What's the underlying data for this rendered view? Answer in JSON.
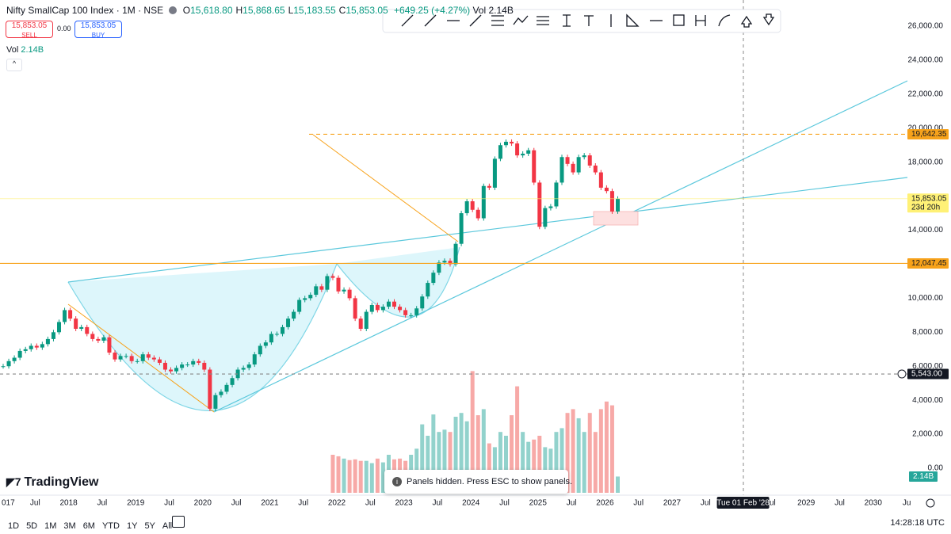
{
  "header": {
    "symbol": "Nifty SmallCap 100 Index · 1M · NSE",
    "ohlc": [
      {
        "key": "O",
        "value": "15,618.80"
      },
      {
        "key": "H",
        "value": "15,868.65"
      },
      {
        "key": "L",
        "value": "15,183.55"
      },
      {
        "key": "C",
        "value": "15,853.05"
      }
    ],
    "change": "+649.25 (+4.27%)",
    "vol": "Vol 2.14B"
  },
  "trade": {
    "sell_price": "15,853.05",
    "sell": "SELL",
    "spread": "0.00",
    "buy_price": "15,853.05",
    "buy": "BUY"
  },
  "volume_legend": {
    "label": "Vol",
    "value": "2.14B"
  },
  "chart_data": {
    "type": "candlestick",
    "up_color": "#089981",
    "down_color": "#f23645",
    "volume_up_color": "#92d2cc",
    "volume_down_color": "#f7a9a7",
    "closes": [
      6000,
      6300,
      6500,
      6900,
      7000,
      7200,
      7100,
      7300,
      7600,
      8000,
      8600,
      9300,
      8800,
      8200,
      8300,
      7900,
      7600,
      7500,
      7700,
      6800,
      6400,
      6600,
      6600,
      6300,
      6300,
      6700,
      6500,
      6400,
      6200,
      5800,
      5700,
      5900,
      6100,
      6100,
      6300,
      6200,
      5800,
      3500,
      4300,
      4500,
      4900,
      5300,
      5800,
      5900,
      6100,
      6700,
      7200,
      7400,
      7900,
      7900,
      8300,
      8800,
      9200,
      9900,
      10000,
      10200,
      10700,
      10500,
      11300,
      11200,
      10400,
      10500,
      10000,
      8800,
      8200,
      9200,
      9600,
      9300,
      9500,
      9800,
      9500,
      9300,
      9000,
      9000,
      9400,
      10100,
      10900,
      11500,
      12100,
      12200,
      12000,
      13200,
      15000,
      15700,
      15200,
      14700,
      16600,
      16500,
      18200,
      19000,
      19200,
      19100,
      18400,
      18500,
      18700,
      16800,
      14200,
      15300,
      15400,
      16800,
      18300,
      17900,
      17400,
      18300,
      18400,
      17800,
      17400,
      16500,
      16300,
      15100,
      15853.05
    ],
    "volumes": [
      null,
      null,
      null,
      null,
      null,
      null,
      null,
      null,
      null,
      null,
      null,
      null,
      null,
      null,
      null,
      null,
      null,
      null,
      null,
      null,
      null,
      null,
      null,
      null,
      null,
      null,
      null,
      null,
      null,
      null,
      null,
      null,
      null,
      null,
      null,
      null,
      null,
      null,
      null,
      null,
      null,
      null,
      null,
      null,
      null,
      null,
      null,
      null,
      null,
      null,
      null,
      null,
      null,
      null,
      null,
      null,
      null,
      null,
      null,
      5.0,
      4.8,
      4.5,
      4.3,
      4.4,
      4.2,
      4.2,
      3.9,
      4.5,
      4.0,
      5.0,
      4.4,
      4.5,
      4.2,
      5.0,
      5.8,
      9.0,
      7.5,
      10.3,
      8.0,
      8.3,
      8.0,
      10.0,
      10.5,
      9.4,
      16.0,
      10.2,
      11.0,
      6.5,
      6.0,
      8.0,
      7.5,
      10.2,
      14.0,
      8.0,
      6.7,
      7.0,
      7.5,
      6.0,
      5.8,
      8.0,
      8.5,
      10.5,
      11.0,
      9.8,
      8.0,
      10.5,
      8.0,
      11.0,
      12.0,
      11.5,
      2.14
    ],
    "ylim": [
      0,
      26000
    ],
    "yticks": [
      {
        "value": 26000,
        "label": "26,000.00"
      },
      {
        "value": 24000,
        "label": "24,000.00"
      },
      {
        "value": 22000,
        "label": "22,000.00"
      },
      {
        "value": 20000,
        "label": "20,000.00"
      },
      {
        "value": 18000,
        "label": "18,000.00"
      },
      {
        "value": 14000,
        "label": "14,000.00"
      },
      {
        "value": 10000,
        "label": "10,000.00"
      },
      {
        "value": 8000,
        "label": "8,000.00"
      },
      {
        "value": 6000,
        "label": "6,000.00"
      },
      {
        "value": 4000,
        "label": "4,000.00"
      },
      {
        "value": 2000,
        "label": "2,000.00"
      },
      {
        "value": 0,
        "label": "0.00"
      }
    ],
    "price_labels": [
      {
        "value": 19642.35,
        "label": "19,642.35",
        "color": "#f7a21b"
      },
      {
        "value": 15853.05,
        "label": "15,853.05",
        "sub": "23d 20h",
        "color": "#fff176"
      },
      {
        "value": 12047.45,
        "label": "12,047.45",
        "color": "#f7a21b"
      },
      {
        "value": 5543,
        "label": "5,543.00",
        "color": "#131722"
      }
    ],
    "volume_label": {
      "value": 2.14,
      "label": "2.14B"
    },
    "xtick_labels": [
      "017",
      "Jul",
      "2018",
      "Jul",
      "2019",
      "Jul",
      "2020",
      "Jul",
      "2021",
      "Jul",
      "2022",
      "Jul",
      "2023",
      "Jul",
      "2024",
      "Jul",
      "2025",
      "Jul",
      "2026",
      "Jul",
      "2027",
      "Jul",
      "Tue 01 Feb '28",
      "ul",
      "2029",
      "Jul",
      "2030",
      "Ju"
    ]
  },
  "logo": "TradingView",
  "toast": "Panels hidden. Press ESC to show panels.",
  "timeframes": [
    "1D",
    "5D",
    "1M",
    "3M",
    "6M",
    "YTD",
    "1Y",
    "5Y",
    "All"
  ],
  "clock": "14:28:18 UTC"
}
